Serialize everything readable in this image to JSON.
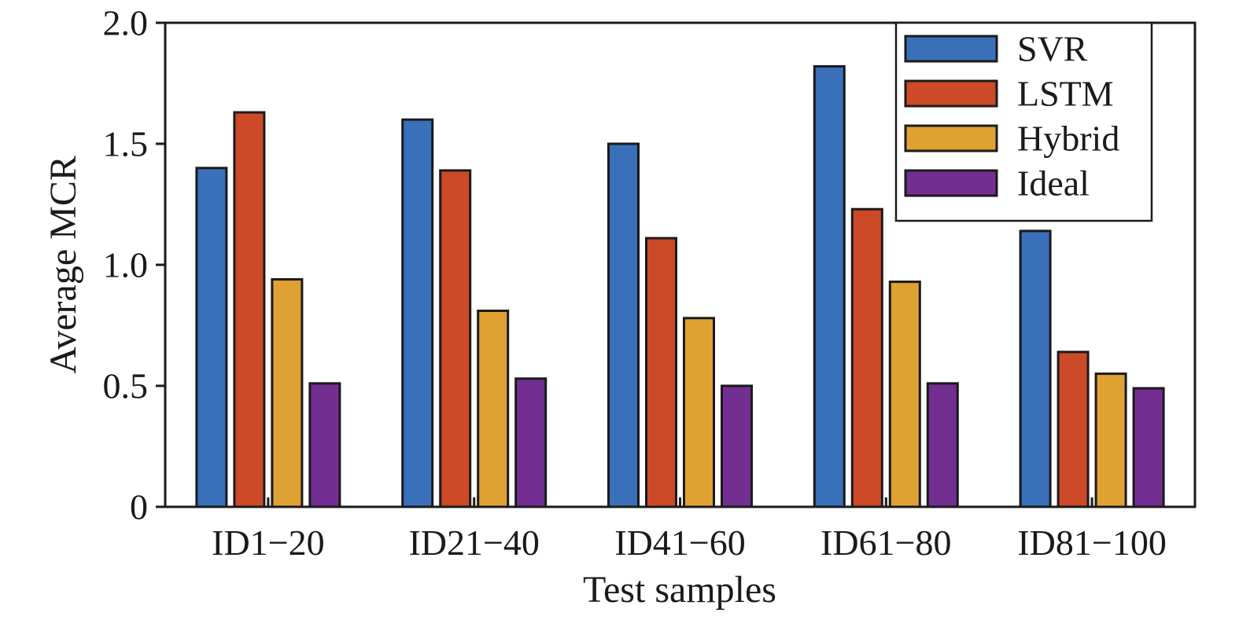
{
  "chart_data": {
    "type": "bar",
    "title": "",
    "xlabel": "Test samples",
    "ylabel": "Average MCR",
    "categories": [
      "ID1−20",
      "ID21−40",
      "ID41−60",
      "ID61−80",
      "ID81−100"
    ],
    "series": [
      {
        "name": "SVR",
        "color": "#3a6fba",
        "values": [
          1.4,
          1.6,
          1.5,
          1.82,
          1.14
        ]
      },
      {
        "name": "LSTM",
        "color": "#cc4a28",
        "values": [
          1.63,
          1.39,
          1.11,
          1.23,
          0.64
        ]
      },
      {
        "name": "Hybrid",
        "color": "#dfa232",
        "values": [
          0.94,
          0.81,
          0.78,
          0.93,
          0.55
        ]
      },
      {
        "name": "Ideal",
        "color": "#722e91",
        "values": [
          0.51,
          0.53,
          0.5,
          0.51,
          0.49
        ]
      }
    ],
    "ylim": [
      0,
      2.0
    ],
    "yticks": [
      0,
      0.5,
      1.0,
      1.5,
      2.0
    ],
    "ytick_labels": [
      "0",
      "0.5",
      "1.0",
      "1.5",
      "2.0"
    ],
    "grid": false,
    "legend_position": "top-right"
  }
}
